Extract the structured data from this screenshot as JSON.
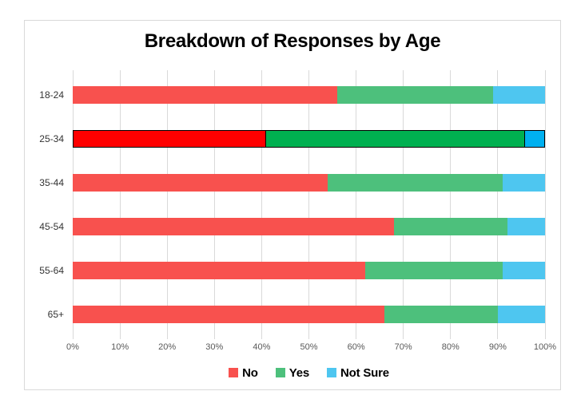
{
  "chart_data": {
    "type": "bar",
    "orientation": "horizontal",
    "stacked": true,
    "title": "Breakdown of Responses by Age",
    "categories": [
      "18-24",
      "25-34",
      "35-44",
      "45-54",
      "55-64",
      "65+"
    ],
    "series": [
      {
        "name": "No",
        "color": "#F8514E",
        "highlight_color": "#FF0000",
        "values": [
          56,
          41,
          54,
          68,
          62,
          66
        ]
      },
      {
        "name": "Yes",
        "color": "#4DC07C",
        "highlight_color": "#00B050",
        "values": [
          33,
          55,
          37,
          24,
          29,
          24
        ]
      },
      {
        "name": "Not Sure",
        "color": "#4EC6F0",
        "highlight_color": "#00B0F0",
        "values": [
          11,
          4,
          9,
          8,
          9,
          10
        ]
      }
    ],
    "highlighted_category": "25-34",
    "highlight_border_color": "#000000",
    "x_axis": {
      "min": 0,
      "max": 100,
      "tick_labels": [
        "0%",
        "10%",
        "20%",
        "30%",
        "40%",
        "50%",
        "60%",
        "70%",
        "80%",
        "90%",
        "100%"
      ]
    },
    "legend": {
      "position": "bottom",
      "entries": [
        "No",
        "Yes",
        "Not Sure"
      ]
    },
    "grid": true,
    "gridline_color": "#D9D9D9",
    "frame_border_color": "#D9D9D9",
    "tick_label_color": "#595959",
    "category_label_color": "#333333"
  }
}
